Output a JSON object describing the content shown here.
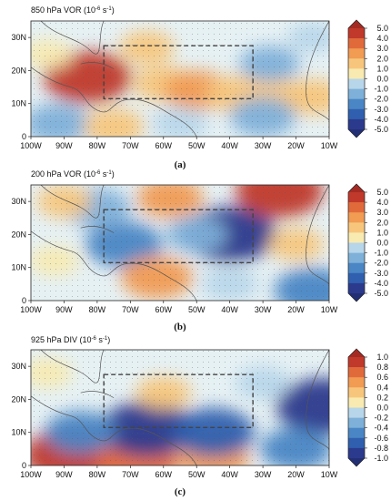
{
  "chart_data": [
    {
      "type": "heatmap",
      "panel_label": "(a)",
      "title": "850 hPa VOR (10",
      "title_exp": "-6",
      "title_tail": " s",
      "title_exp2": "-1",
      "title_close": ")",
      "x_ticks": [
        "100W",
        "90W",
        "80W",
        "70W",
        "60W",
        "50W",
        "40W",
        "30W",
        "20W",
        "10W"
      ],
      "y_ticks": [
        "0",
        "10N",
        "20N",
        "30N"
      ],
      "xlim": [
        -100,
        -10
      ],
      "ylim": [
        0,
        35
      ],
      "colorbar_ticks": [
        "5.0",
        "4.0",
        "3.0",
        "2.0",
        "1.0",
        "0.0",
        "-1.0",
        "-2.0",
        "-3.0",
        "-4.0",
        "-5.0"
      ],
      "box": {
        "lon": [
          -78,
          -33
        ],
        "lat": [
          11.5,
          27.5
        ]
      },
      "anomalies": [
        {
          "lon": -83,
          "lat": 18,
          "value": 4.5
        },
        {
          "lon": -60,
          "lat": 16,
          "value": 2.0
        },
        {
          "lon": -50,
          "lat": 14,
          "value": 2.5
        },
        {
          "lon": -38,
          "lat": 13,
          "value": 2.0
        },
        {
          "lon": -25,
          "lat": 12,
          "value": 2.0
        },
        {
          "lon": -15,
          "lat": 12,
          "value": 2.0
        },
        {
          "lon": -92,
          "lat": 4,
          "value": -2.5
        },
        {
          "lon": -75,
          "lat": 3,
          "value": 2.0
        },
        {
          "lon": -55,
          "lat": 4,
          "value": -1.5
        },
        {
          "lon": -28,
          "lat": 22,
          "value": -2.0
        },
        {
          "lon": -30,
          "lat": 6,
          "value": -2.5
        },
        {
          "lon": -65,
          "lat": 27,
          "value": 1.5
        },
        {
          "lon": -95,
          "lat": 25,
          "value": 1.0
        },
        {
          "lon": -15,
          "lat": 30,
          "value": -1.0
        }
      ]
    },
    {
      "type": "heatmap",
      "panel_label": "(b)",
      "title": "200 hPa VOR (10",
      "title_exp": "-6",
      "title_tail": " s",
      "title_exp2": "-1",
      "title_close": ")",
      "x_ticks": [
        "100W",
        "90W",
        "80W",
        "70W",
        "60W",
        "50W",
        "40W",
        "30W",
        "20W",
        "10W"
      ],
      "y_ticks": [
        "0",
        "10N",
        "20N",
        "30N"
      ],
      "xlim": [
        -100,
        -10
      ],
      "ylim": [
        0,
        35
      ],
      "colorbar_ticks": [
        "5.0",
        "4.0",
        "3.0",
        "2.0",
        "1.0",
        "0.0",
        "-1.0",
        "-2.0",
        "-3.0",
        "-4.0",
        "-5.0"
      ],
      "box": {
        "lon": [
          -78,
          -33
        ],
        "lat": [
          11.5,
          27.5
        ]
      },
      "anomalies": [
        {
          "lon": -40,
          "lat": 20,
          "value": -5.0
        },
        {
          "lon": -72,
          "lat": 17,
          "value": -3.5
        },
        {
          "lon": -80,
          "lat": 28,
          "value": -2.5
        },
        {
          "lon": -25,
          "lat": 33,
          "value": 4.5
        },
        {
          "lon": -58,
          "lat": 31,
          "value": 2.5
        },
        {
          "lon": -62,
          "lat": 7,
          "value": 3.0
        },
        {
          "lon": -90,
          "lat": 30,
          "value": 1.5
        },
        {
          "lon": -20,
          "lat": 17,
          "value": 1.5
        },
        {
          "lon": -93,
          "lat": 12,
          "value": 1.0
        },
        {
          "lon": -15,
          "lat": 3,
          "value": -3.5
        },
        {
          "lon": -40,
          "lat": 5,
          "value": -1.5
        },
        {
          "lon": -50,
          "lat": 20,
          "value": -2.0
        }
      ]
    },
    {
      "type": "heatmap",
      "panel_label": "(c)",
      "title": "925 hPa DIV (10",
      "title_exp": "-6",
      "title_tail": " s",
      "title_exp2": "-1",
      "title_close": ")",
      "x_ticks": [
        "100W",
        "90W",
        "80W",
        "70W",
        "60W",
        "50W",
        "40W",
        "30W",
        "20W",
        "10W"
      ],
      "y_ticks": [
        "0",
        "10N",
        "20N",
        "30N"
      ],
      "xlim": [
        -100,
        -10
      ],
      "ylim": [
        0,
        35
      ],
      "colorbar_ticks": [
        "1.0",
        "0.8",
        "0.6",
        "0.4",
        "0.2",
        "0.0",
        "-0.2",
        "-0.4",
        "-0.6",
        "-0.8",
        "-1.0"
      ],
      "box": {
        "lon": [
          -78,
          -33
        ],
        "lat": [
          11.5,
          27.5
        ]
      },
      "anomalies": [
        {
          "lon": -88,
          "lat": 3,
          "value": 1.0
        },
        {
          "lon": -68,
          "lat": 1,
          "value": 0.8
        },
        {
          "lon": -45,
          "lat": 2,
          "value": 0.6
        },
        {
          "lon": -65,
          "lat": 11,
          "value": -1.0
        },
        {
          "lon": -45,
          "lat": 10,
          "value": -0.8
        },
        {
          "lon": -12,
          "lat": 18,
          "value": -1.0
        },
        {
          "lon": -85,
          "lat": 10,
          "value": -0.6
        },
        {
          "lon": -60,
          "lat": 22,
          "value": 0.3
        },
        {
          "lon": -30,
          "lat": 25,
          "value": -0.3
        },
        {
          "lon": -20,
          "lat": 5,
          "value": -0.6
        },
        {
          "lon": -95,
          "lat": 28,
          "value": 0.2
        }
      ]
    }
  ]
}
